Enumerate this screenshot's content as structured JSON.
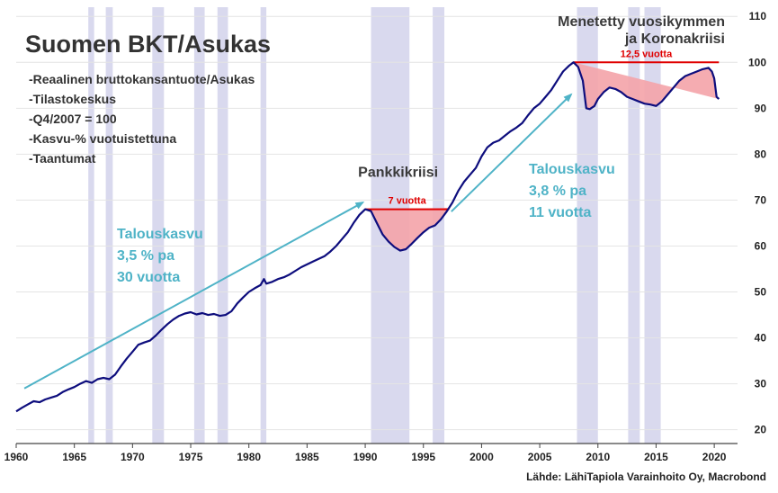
{
  "chart_data": {
    "type": "line",
    "title": "Suomen BKT/Asukas",
    "notes": [
      "-Reaalinen bruttokansantuote/Asukas",
      "-Tilastokeskus",
      "-Q4/2007 = 100",
      "-Kasvu-% vuotuistettuna",
      "-Taantumat"
    ],
    "xlim": [
      1960,
      2022
    ],
    "ylim": [
      17,
      112
    ],
    "x_ticks": [
      1960,
      1965,
      1970,
      1975,
      1980,
      1985,
      1990,
      1995,
      2000,
      2005,
      2010,
      2015,
      2020
    ],
    "y_ticks": [
      20,
      30,
      40,
      50,
      60,
      70,
      80,
      90,
      100,
      110
    ],
    "y_axis_side": "right",
    "grid": "horizontal",
    "colors": {
      "line": "#0d0d7d",
      "recession": "#d9d9ee",
      "crisis_fill": "#f4a3a8",
      "crisis_line": "#e00000",
      "growth_arrow": "#4fb3c7"
    },
    "recessions": [
      [
        1966.2,
        1966.7
      ],
      [
        1967.7,
        1968.3
      ],
      [
        1971.7,
        1972.7
      ],
      [
        1975.3,
        1976.2
      ],
      [
        1977.3,
        1978.2
      ],
      [
        1981.0,
        1981.5
      ],
      [
        1990.5,
        1993.8
      ],
      [
        1995.8,
        1996.8
      ],
      [
        2008.2,
        2010.0
      ],
      [
        2012.6,
        2013.6
      ],
      [
        2014.0,
        2015.4
      ]
    ],
    "series": [
      {
        "values": [
          [
            1960.0,
            24.0
          ],
          [
            1960.5,
            24.8
          ],
          [
            1961.0,
            25.5
          ],
          [
            1961.5,
            26.2
          ],
          [
            1962.0,
            26.0
          ],
          [
            1962.5,
            26.6
          ],
          [
            1963.0,
            27.0
          ],
          [
            1963.5,
            27.4
          ],
          [
            1964.0,
            28.2
          ],
          [
            1964.5,
            28.8
          ],
          [
            1965.0,
            29.3
          ],
          [
            1965.5,
            30.0
          ],
          [
            1966.0,
            30.6
          ],
          [
            1966.5,
            30.2
          ],
          [
            1967.0,
            31.0
          ],
          [
            1967.5,
            31.3
          ],
          [
            1968.0,
            31.0
          ],
          [
            1968.5,
            32.0
          ],
          [
            1969.0,
            33.8
          ],
          [
            1969.5,
            35.5
          ],
          [
            1970.0,
            37.0
          ],
          [
            1970.5,
            38.5
          ],
          [
            1971.0,
            39.0
          ],
          [
            1971.5,
            39.4
          ],
          [
            1972.0,
            40.5
          ],
          [
            1972.5,
            41.8
          ],
          [
            1973.0,
            43.0
          ],
          [
            1973.5,
            44.0
          ],
          [
            1974.0,
            44.8
          ],
          [
            1974.5,
            45.3
          ],
          [
            1975.0,
            45.6
          ],
          [
            1975.5,
            45.1
          ],
          [
            1976.0,
            45.4
          ],
          [
            1976.5,
            45.0
          ],
          [
            1977.0,
            45.2
          ],
          [
            1977.5,
            44.8
          ],
          [
            1978.0,
            45.0
          ],
          [
            1978.5,
            45.8
          ],
          [
            1979.0,
            47.5
          ],
          [
            1979.5,
            48.8
          ],
          [
            1980.0,
            50.0
          ],
          [
            1980.5,
            50.8
          ],
          [
            1981.0,
            51.5
          ],
          [
            1981.3,
            52.8
          ],
          [
            1981.5,
            51.8
          ],
          [
            1982.0,
            52.2
          ],
          [
            1982.5,
            52.8
          ],
          [
            1983.0,
            53.2
          ],
          [
            1983.5,
            53.8
          ],
          [
            1984.0,
            54.6
          ],
          [
            1984.5,
            55.4
          ],
          [
            1985.0,
            56.0
          ],
          [
            1985.5,
            56.6
          ],
          [
            1986.0,
            57.2
          ],
          [
            1986.5,
            57.8
          ],
          [
            1987.0,
            58.8
          ],
          [
            1987.5,
            60.0
          ],
          [
            1988.0,
            61.5
          ],
          [
            1988.5,
            63.0
          ],
          [
            1989.0,
            65.0
          ],
          [
            1989.5,
            66.8
          ],
          [
            1990.0,
            68.0
          ],
          [
            1990.5,
            67.6
          ],
          [
            1991.0,
            65.0
          ],
          [
            1991.5,
            62.5
          ],
          [
            1992.0,
            61.0
          ],
          [
            1992.5,
            59.8
          ],
          [
            1993.0,
            59.0
          ],
          [
            1993.5,
            59.3
          ],
          [
            1994.0,
            60.5
          ],
          [
            1994.5,
            61.8
          ],
          [
            1995.0,
            63.0
          ],
          [
            1995.5,
            64.0
          ],
          [
            1996.0,
            64.5
          ],
          [
            1996.5,
            65.8
          ],
          [
            1997.0,
            67.5
          ],
          [
            1997.5,
            69.5
          ],
          [
            1998.0,
            72.0
          ],
          [
            1998.5,
            74.0
          ],
          [
            1999.0,
            75.5
          ],
          [
            1999.5,
            77.0
          ],
          [
            2000.0,
            79.5
          ],
          [
            2000.5,
            81.5
          ],
          [
            2001.0,
            82.5
          ],
          [
            2001.5,
            83.0
          ],
          [
            2002.0,
            84.0
          ],
          [
            2002.5,
            85.0
          ],
          [
            2003.0,
            85.8
          ],
          [
            2003.5,
            86.8
          ],
          [
            2004.0,
            88.5
          ],
          [
            2004.5,
            90.0
          ],
          [
            2005.0,
            91.0
          ],
          [
            2005.5,
            92.5
          ],
          [
            2006.0,
            94.0
          ],
          [
            2006.5,
            96.0
          ],
          [
            2007.0,
            98.0
          ],
          [
            2007.5,
            99.2
          ],
          [
            2007.9,
            100.0
          ],
          [
            2008.3,
            99.0
          ],
          [
            2008.7,
            96.0
          ],
          [
            2009.0,
            90.0
          ],
          [
            2009.3,
            89.8
          ],
          [
            2009.7,
            90.5
          ],
          [
            2010.0,
            92.0
          ],
          [
            2010.5,
            93.5
          ],
          [
            2011.0,
            94.5
          ],
          [
            2011.5,
            94.2
          ],
          [
            2012.0,
            93.5
          ],
          [
            2012.5,
            92.5
          ],
          [
            2013.0,
            92.0
          ],
          [
            2013.5,
            91.5
          ],
          [
            2014.0,
            91.0
          ],
          [
            2014.5,
            90.8
          ],
          [
            2015.0,
            90.5
          ],
          [
            2015.5,
            91.5
          ],
          [
            2016.0,
            93.0
          ],
          [
            2016.5,
            94.5
          ],
          [
            2017.0,
            96.0
          ],
          [
            2017.5,
            97.0
          ],
          [
            2018.0,
            97.5
          ],
          [
            2018.5,
            98.0
          ],
          [
            2019.0,
            98.5
          ],
          [
            2019.5,
            98.8
          ],
          [
            2019.8,
            98.0
          ],
          [
            2020.0,
            96.5
          ],
          [
            2020.2,
            92.5
          ],
          [
            2020.4,
            92.0
          ]
        ]
      }
    ],
    "crises": [
      {
        "name": "Pankkikriisi",
        "label": "7 vuotta",
        "peak": 68.0,
        "from": 1990.0,
        "to": 1997.2
      },
      {
        "name": "Menetetty vuosikymmen\nja Koronakriisi",
        "label": "12,5 vuotta",
        "peak": 100.0,
        "from": 2007.9,
        "to": 2020.4
      }
    ],
    "growth_annotations": [
      {
        "lines": [
          "Talouskasvu",
          "3,5 % pa",
          "30 vuotta"
        ],
        "arrow_from": [
          1960.7,
          29.0
        ],
        "arrow_to": [
          1989.8,
          69.5
        ]
      },
      {
        "lines": [
          "Talouskasvu",
          "3,8 % pa",
          "11 vuotta"
        ],
        "arrow_from": [
          1997.4,
          67.5
        ],
        "arrow_to": [
          2007.7,
          93.0
        ]
      }
    ],
    "source": "Lähde: LähiTapiola Varainhoito Oy, Macrobond"
  }
}
